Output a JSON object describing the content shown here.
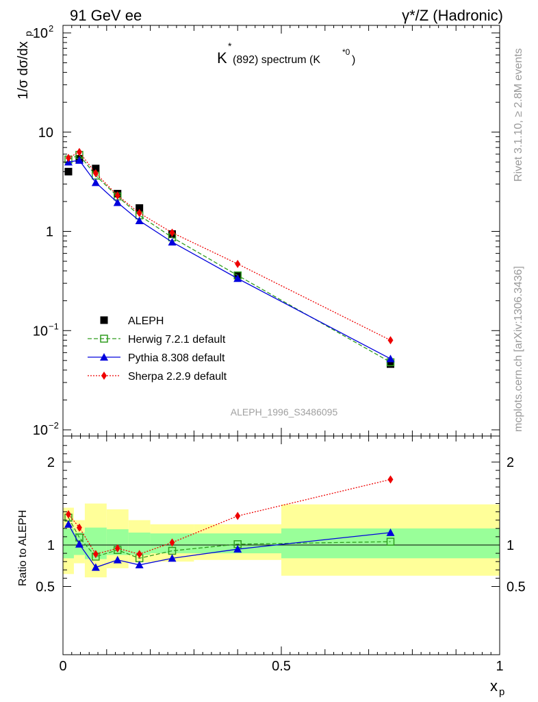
{
  "header": {
    "left": "91 GeV ee",
    "right": "γ*/Z (Hadronic)"
  },
  "side_text": {
    "rivet": "Rivet 3.1.10, ≥ 2.8M events",
    "mcplots": "mcplots.cern.ch [arXiv:1306.3436]"
  },
  "analysis_id": "ALEPH_1996_S3486095",
  "chart_data": [
    {
      "type": "scatter",
      "panel": "main",
      "title": "K*(892) spectrum (K*0)",
      "xlabel": "x_p",
      "ylabel": "1/σ dσ/dx_p",
      "xlim": [
        0,
        1
      ],
      "ylim": [
        0.01,
        120
      ],
      "yscale": "log",
      "ytick_labels": [
        "10^-2",
        "10^-1",
        "1",
        "10",
        "10^2"
      ],
      "legend_position": "lower-left",
      "x": [
        0.0125,
        0.0375,
        0.075,
        0.125,
        0.175,
        0.25,
        0.4,
        0.75
      ],
      "series": [
        {
          "name": "ALEPH",
          "style": "data",
          "color": "#000000",
          "marker": "filled-square",
          "values": [
            4.0,
            5.4,
            4.3,
            2.4,
            1.72,
            0.94,
            0.36,
            0.046
          ]
        },
        {
          "name": "Herwig 7.2.1 default",
          "style": "dashed",
          "color": "#2e9c1e",
          "marker": "open-square",
          "values": [
            5.3,
            5.9,
            3.65,
            2.25,
            1.45,
            0.87,
            0.36,
            0.048
          ]
        },
        {
          "name": "Pythia 8.308 default",
          "style": "solid",
          "color": "#0000dd",
          "marker": "filled-triangle",
          "values": [
            5.0,
            5.2,
            3.1,
            1.95,
            1.28,
            0.78,
            0.335,
            0.052
          ]
        },
        {
          "name": "Sherpa 2.2.9 default",
          "style": "dotted",
          "color": "#ee0000",
          "marker": "filled-diamond",
          "values": [
            5.5,
            6.3,
            3.85,
            2.3,
            1.53,
            0.97,
            0.47,
            0.08
          ]
        }
      ]
    },
    {
      "type": "line",
      "panel": "ratio",
      "ylabel": "Ratio to ALEPH",
      "xlabel": "x_p",
      "xlim": [
        0,
        1
      ],
      "ylim": [
        0.4,
        2.3
      ],
      "ytick_labels": [
        "0.5",
        "1",
        "2"
      ],
      "xtick_labels": [
        "0",
        "0.5",
        "1"
      ],
      "x": [
        0.0125,
        0.0375,
        0.075,
        0.125,
        0.175,
        0.25,
        0.4,
        0.75
      ],
      "bands": {
        "inner_color": "#99ff99",
        "outer_color": "#ffff99",
        "bins": [
          {
            "x0": 0.0,
            "x1": 0.025,
            "inner": [
              0.84,
              1.2
            ],
            "outer": [
              0.65,
              1.45
            ]
          },
          {
            "x0": 0.025,
            "x1": 0.05,
            "inner": [
              0.88,
              1.15
            ],
            "outer": [
              0.78,
              1.3
            ]
          },
          {
            "x0": 0.05,
            "x1": 0.1,
            "inner": [
              0.83,
              1.21
            ],
            "outer": [
              0.61,
              1.5
            ]
          },
          {
            "x0": 0.1,
            "x1": 0.15,
            "inner": [
              0.88,
              1.19
            ],
            "outer": [
              0.72,
              1.43
            ]
          },
          {
            "x0": 0.15,
            "x1": 0.2,
            "inner": [
              0.88,
              1.15
            ],
            "outer": [
              0.79,
              1.3
            ]
          },
          {
            "x0": 0.2,
            "x1": 0.3,
            "inner": [
              0.9,
              1.14
            ],
            "outer": [
              0.8,
              1.25
            ]
          },
          {
            "x0": 0.3,
            "x1": 0.5,
            "inner": [
              0.9,
              1.14
            ],
            "outer": [
              0.82,
              1.25
            ]
          },
          {
            "x0": 0.5,
            "x1": 1.0,
            "inner": [
              0.84,
              1.2
            ],
            "outer": [
              0.63,
              1.49
            ]
          }
        ]
      },
      "series": [
        {
          "name": "Herwig 7.2.1 default",
          "color": "#2e9c1e",
          "style": "dashed",
          "marker": "open-square",
          "values": [
            1.33,
            1.09,
            0.86,
            0.94,
            0.84,
            0.93,
            1.01,
            1.04
          ]
        },
        {
          "name": "Pythia 8.308 default",
          "color": "#0000dd",
          "style": "solid",
          "marker": "filled-triangle",
          "values": [
            1.25,
            1.01,
            0.73,
            0.82,
            0.76,
            0.84,
            0.95,
            1.15
          ]
        },
        {
          "name": "Sherpa 2.2.9 default",
          "color": "#ee0000",
          "style": "dotted",
          "marker": "filled-diamond",
          "values": [
            1.37,
            1.21,
            0.89,
            0.96,
            0.89,
            1.03,
            1.35,
            1.79
          ]
        }
      ]
    }
  ]
}
